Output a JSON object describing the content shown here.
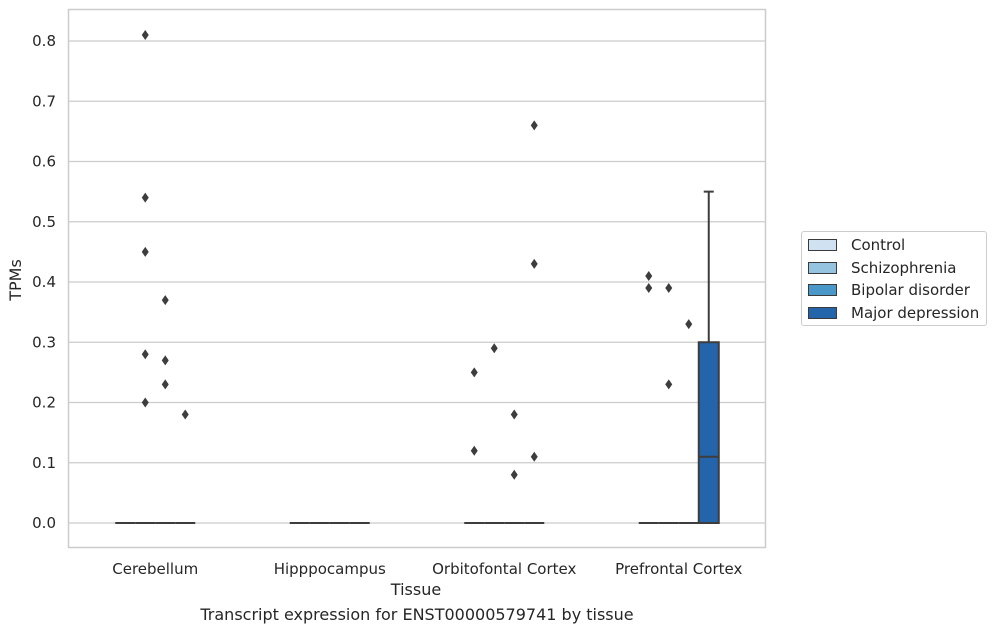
{
  "chart_data": {
    "type": "box",
    "title": "",
    "caption": "Transcript expression for ENST00000579741 by tissue",
    "xlabel": "Tissue",
    "ylabel": "TPMs",
    "ylim": [
      -0.04,
      0.85
    ],
    "yticks": [
      "0.0",
      "0.1",
      "0.2",
      "0.3",
      "0.4",
      "0.5",
      "0.6",
      "0.7",
      "0.8"
    ],
    "grid": true,
    "legend_position": "right",
    "categories": [
      "Cerebellum",
      "Hipppocampus",
      "Orbitofontal Cortex",
      "Prefrontal Cortex"
    ],
    "series": [
      {
        "name": "Control",
        "color": "#d0e1f2"
      },
      {
        "name": "Schizophrenia",
        "color": "#94c4df"
      },
      {
        "name": "Bipolar disorder",
        "color": "#4a98c9"
      },
      {
        "name": "Major depression",
        "color": "#2464ab"
      }
    ],
    "boxes": [
      {
        "category": "Cerebellum",
        "series": "Control",
        "q1": 0,
        "median": 0,
        "q3": 0,
        "whisker_low": 0,
        "whisker_high": 0
      },
      {
        "category": "Cerebellum",
        "series": "Schizophrenia",
        "q1": 0,
        "median": 0,
        "q3": 0,
        "whisker_low": 0,
        "whisker_high": 0,
        "outliers": [
          0.81,
          0.54,
          0.45,
          0.28,
          0.2
        ]
      },
      {
        "category": "Cerebellum",
        "series": "Bipolar disorder",
        "q1": 0,
        "median": 0,
        "q3": 0,
        "whisker_low": 0,
        "whisker_high": 0,
        "outliers": [
          0.37,
          0.27,
          0.23
        ]
      },
      {
        "category": "Cerebellum",
        "series": "Major depression",
        "q1": 0,
        "median": 0,
        "q3": 0,
        "whisker_low": 0,
        "whisker_high": 0,
        "outliers": [
          0.18
        ]
      },
      {
        "category": "Hipppocampus",
        "series": "Control",
        "q1": 0,
        "median": 0,
        "q3": 0,
        "whisker_low": 0,
        "whisker_high": 0
      },
      {
        "category": "Hipppocampus",
        "series": "Schizophrenia",
        "q1": 0,
        "median": 0,
        "q3": 0,
        "whisker_low": 0,
        "whisker_high": 0
      },
      {
        "category": "Hipppocampus",
        "series": "Bipolar disorder",
        "q1": 0,
        "median": 0,
        "q3": 0,
        "whisker_low": 0,
        "whisker_high": 0
      },
      {
        "category": "Hipppocampus",
        "series": "Major depression",
        "q1": 0,
        "median": 0,
        "q3": 0,
        "whisker_low": 0,
        "whisker_high": 0
      },
      {
        "category": "Orbitofontal Cortex",
        "series": "Control",
        "q1": 0,
        "median": 0,
        "q3": 0,
        "whisker_low": 0,
        "whisker_high": 0,
        "outliers": [
          0.25,
          0.12
        ]
      },
      {
        "category": "Orbitofontal Cortex",
        "series": "Schizophrenia",
        "q1": 0,
        "median": 0,
        "q3": 0,
        "whisker_low": 0,
        "whisker_high": 0,
        "outliers": [
          0.29
        ]
      },
      {
        "category": "Orbitofontal Cortex",
        "series": "Bipolar disorder",
        "q1": 0,
        "median": 0,
        "q3": 0,
        "whisker_low": 0,
        "whisker_high": 0,
        "outliers": [
          0.18,
          0.08
        ]
      },
      {
        "category": "Orbitofontal Cortex",
        "series": "Major depression",
        "q1": 0,
        "median": 0,
        "q3": 0,
        "whisker_low": 0,
        "whisker_high": 0,
        "outliers": [
          0.66,
          0.43,
          0.11
        ]
      },
      {
        "category": "Prefrontal Cortex",
        "series": "Control",
        "q1": 0,
        "median": 0,
        "q3": 0,
        "whisker_low": 0,
        "whisker_high": 0,
        "outliers": [
          0.41,
          0.39
        ]
      },
      {
        "category": "Prefrontal Cortex",
        "series": "Schizophrenia",
        "q1": 0,
        "median": 0,
        "q3": 0,
        "whisker_low": 0,
        "whisker_high": 0,
        "outliers": [
          0.39,
          0.23
        ]
      },
      {
        "category": "Prefrontal Cortex",
        "series": "Bipolar disorder",
        "q1": 0,
        "median": 0,
        "q3": 0,
        "whisker_low": 0,
        "whisker_high": 0,
        "outliers": [
          0.33
        ]
      },
      {
        "category": "Prefrontal Cortex",
        "series": "Major depression",
        "q1": 0,
        "median": 0.11,
        "q3": 0.3,
        "whisker_low": 0,
        "whisker_high": 0.55
      }
    ]
  }
}
